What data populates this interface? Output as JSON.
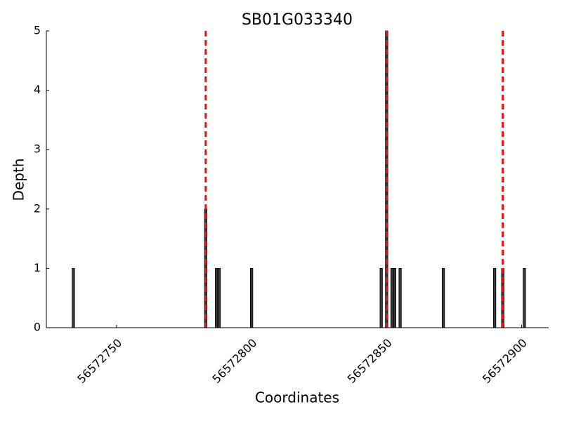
{
  "chart_data": {
    "type": "bar",
    "title": "SB01G033340",
    "x_label": "Coordinates",
    "y_label": "Depth",
    "x": [
      56572734,
      56572783,
      56572787,
      56572788,
      56572800,
      56572848,
      56572850,
      56572852,
      56572853,
      56572855,
      56572871,
      56572890,
      56572893,
      56572901
    ],
    "values": [
      1,
      2,
      1,
      1,
      1,
      1,
      5,
      1,
      1,
      1,
      1,
      1,
      1,
      1
    ],
    "color": "#3a3a3a",
    "xlim": [
      56572724,
      56572910
    ],
    "xticks": [
      56572750,
      56572800,
      56572850,
      56572900
    ],
    "ylim": [
      0,
      5
    ],
    "yticks": [
      0,
      1,
      2,
      3,
      4,
      5
    ],
    "vlines": [
      56572783,
      56572850,
      56572893
    ],
    "vline_color": "#ee1111"
  }
}
